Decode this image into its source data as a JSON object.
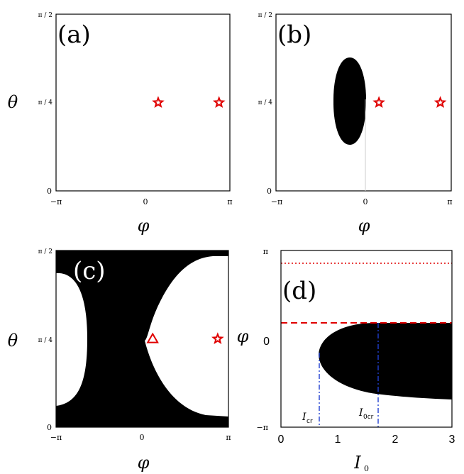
{
  "chart_data": [
    {
      "panel": "a",
      "label": "(a)",
      "type": "scatter",
      "xlabel": "φ",
      "ylabel": "θ",
      "xlim": [
        "−π",
        "π"
      ],
      "ylim": [
        "0",
        "π / 2"
      ],
      "x_ticks": [
        "−π",
        "0",
        "π"
      ],
      "y_ticks": [
        "0",
        "π / 4",
        "π / 2"
      ],
      "markers": [
        {
          "shape": "star",
          "x": 0.55,
          "y": 0.785,
          "color": "#e00000"
        },
        {
          "shape": "star",
          "x": 2.75,
          "y": 0.785,
          "color": "#e00000"
        }
      ]
    },
    {
      "panel": "b",
      "label": "(b)",
      "type": "region",
      "xlabel": "φ",
      "ylabel": "",
      "xlim": [
        "−π",
        "π"
      ],
      "ylim": [
        "0",
        "π / 2"
      ],
      "x_ticks": [
        "−π",
        "0",
        "π"
      ],
      "y_ticks": [
        "0",
        "π / 4",
        "π / 2"
      ],
      "region": {
        "shape": "ellipse",
        "center_x": -0.55,
        "center_y": 0.785,
        "half_width": 0.6,
        "half_height": 0.47,
        "color": "#000000"
      },
      "markers": [
        {
          "shape": "star",
          "x": 0.55,
          "y": 0.785,
          "color": "#e00000"
        },
        {
          "shape": "star",
          "x": 2.75,
          "y": 0.785,
          "color": "#e00000"
        }
      ]
    },
    {
      "panel": "c",
      "label": "(c)",
      "type": "region",
      "xlabel": "φ",
      "ylabel": "θ",
      "xlim": [
        "−π",
        "π"
      ],
      "ylim": [
        "0",
        "π / 2"
      ],
      "x_ticks": [
        "−π",
        "0",
        "π"
      ],
      "y_ticks": [
        "0",
        "π / 4",
        "π / 2"
      ],
      "background_color": "#000000",
      "markers": [
        {
          "shape": "triangle",
          "x": 0.38,
          "y": 0.785,
          "color": "#e00000"
        },
        {
          "shape": "star",
          "x": 2.75,
          "y": 0.785,
          "color": "#e00000"
        }
      ]
    },
    {
      "panel": "d",
      "label": "(d)",
      "type": "region",
      "xlabel": "I",
      "xlabel_sub": "0",
      "ylabel": "φ",
      "xlim": [
        0,
        3
      ],
      "ylim": [
        "−π",
        "π"
      ],
      "x_ticks": [
        "0",
        "1",
        "2",
        "3"
      ],
      "y_ticks": [
        "−π",
        "0",
        "π"
      ],
      "region": {
        "shape": "parabolic",
        "tip_I": 0.68,
        "upper_phi": 0.45,
        "lower_phi_at_3": -2.2,
        "color": "#000000"
      },
      "hlines": [
        {
          "y": 2.75,
          "style": "dotted",
          "color": "#e00000"
        },
        {
          "y": 0.45,
          "style": "dashed",
          "color": "#e00000"
        }
      ],
      "vlines": [
        {
          "x": 0.68,
          "style": "dashdot",
          "color": "#1f3fd0"
        },
        {
          "x": 1.72,
          "style": "dashdot",
          "color": "#1f3fd0"
        }
      ],
      "annotations": [
        {
          "text": "I",
          "sub": "cr"
        },
        {
          "text": "I",
          "sub": "0cr"
        }
      ]
    }
  ]
}
